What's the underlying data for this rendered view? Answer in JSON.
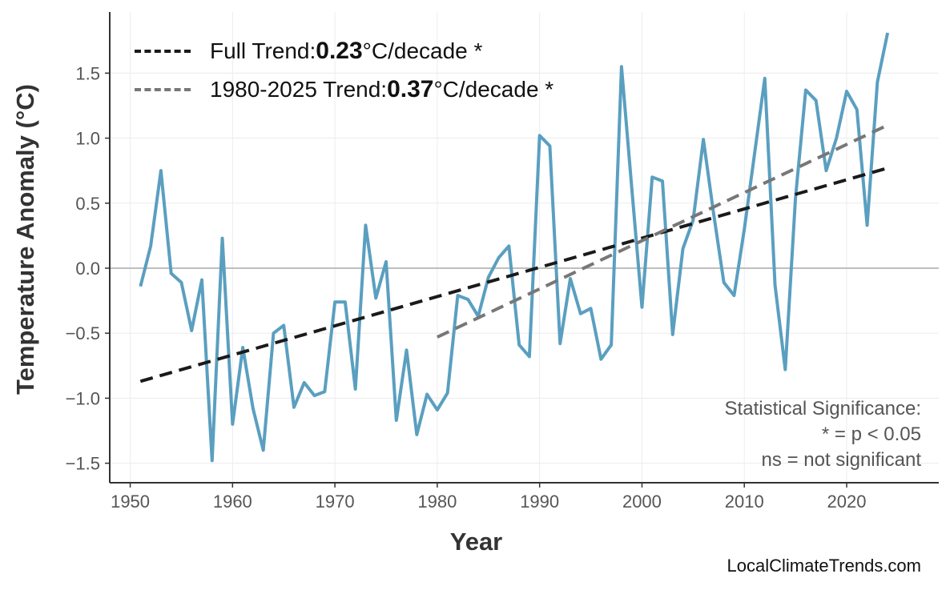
{
  "chart_data": {
    "type": "line",
    "title": "",
    "xlabel": "Year",
    "ylabel": "Temperature Anomaly (°C)",
    "xlim": [
      1948,
      2029
    ],
    "ylim": [
      -1.65,
      1.97
    ],
    "x_ticks": [
      1950,
      1960,
      1970,
      1980,
      1990,
      2000,
      2010,
      2020
    ],
    "y_ticks": [
      -1.5,
      -1.0,
      -0.5,
      0.0,
      0.5,
      1.0,
      1.5
    ],
    "y_tick_labels": [
      "−1.5",
      "−1.0",
      "−0.5",
      "0.0",
      "0.5",
      "1.0",
      "1.5"
    ],
    "grid": true,
    "zero_line": true,
    "legend_position": "top-left",
    "series": [
      {
        "color": "#5a9fc0",
        "x": [
          1951,
          1952,
          1953,
          1954,
          1955,
          1956,
          1957,
          1958,
          1959,
          1960,
          1961,
          1962,
          1963,
          1964,
          1965,
          1966,
          1967,
          1968,
          1969,
          1970,
          1971,
          1972,
          1973,
          1974,
          1975,
          1976,
          1977,
          1978,
          1979,
          1980,
          1981,
          1982,
          1983,
          1984,
          1985,
          1986,
          1987,
          1988,
          1989,
          1990,
          1991,
          1992,
          1993,
          1994,
          1995,
          1996,
          1997,
          1998,
          1999,
          2000,
          2001,
          2002,
          2003,
          2004,
          2005,
          2006,
          2007,
          2008,
          2009,
          2010,
          2011,
          2012,
          2013,
          2014,
          2015,
          2016,
          2017,
          2018,
          2019,
          2020,
          2021,
          2022,
          2023,
          2024
        ],
        "y": [
          -0.14,
          0.17,
          0.75,
          -0.04,
          -0.11,
          -0.48,
          -0.09,
          -1.48,
          0.23,
          -1.2,
          -0.61,
          -1.08,
          -1.4,
          -0.5,
          -0.44,
          -1.07,
          -0.88,
          -0.98,
          -0.95,
          -0.26,
          -0.26,
          -0.93,
          0.33,
          -0.23,
          0.05,
          -1.17,
          -0.63,
          -1.28,
          -0.97,
          -1.09,
          -0.96,
          -0.21,
          -0.24,
          -0.37,
          -0.07,
          0.08,
          0.17,
          -0.59,
          -0.68,
          1.02,
          0.94,
          -0.58,
          -0.08,
          -0.35,
          -0.31,
          -0.7,
          -0.59,
          1.55,
          0.62,
          -0.3,
          0.7,
          0.67,
          -0.51,
          0.15,
          0.37,
          0.99,
          0.42,
          -0.11,
          -0.21,
          0.3,
          0.88,
          1.46,
          -0.13,
          -0.78,
          0.54,
          1.37,
          1.29,
          0.75,
          1.0,
          1.36,
          1.22,
          0.33,
          1.43,
          1.81
        ]
      }
    ],
    "trends": [
      {
        "name": "Full Trend",
        "color": "#1a1a1a",
        "x": [
          1951,
          2024
        ],
        "y": [
          -0.87,
          0.77
        ],
        "label_prefix": "Full Trend: ",
        "value": "0.23",
        "unit": "°C/decade *"
      },
      {
        "name": "1980-2025 Trend",
        "color": "#777777",
        "x": [
          1980,
          2024
        ],
        "y": [
          -0.53,
          1.1
        ],
        "label_prefix": "1980-2025 Trend: ",
        "value": "0.37",
        "unit": "°C/decade *"
      }
    ],
    "annotation": [
      "Statistical Significance:",
      "* = p < 0.05",
      "ns = not significant"
    ],
    "credit": "LocalClimateTrends.com"
  }
}
